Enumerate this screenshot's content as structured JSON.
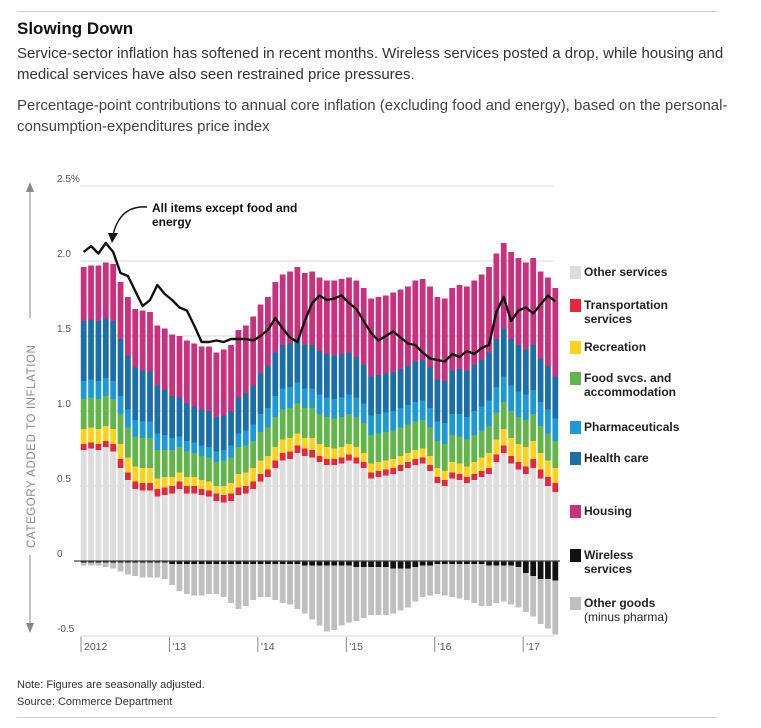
{
  "title": "Slowing Down",
  "subtitle": "Service-sector inflation has softened in recent months. Wireless services posted a drop, while housing and medical services have also seen restrained price pressures.",
  "description": "Percentage-point contributions to annual core inflation (excluding food and energy), based on the personal-consumption-expenditures price index",
  "note": "Note: Figures are seasonally adjusted.",
  "source": "Source: Commerce Department",
  "chart_data": {
    "type": "bar",
    "stacked": true,
    "ylabel": "CATEGORY ADDED TO INFLATION",
    "ylim": [
      -0.5,
      2.5
    ],
    "yticks": [
      {
        "value": 2.5,
        "label": "2.5%"
      },
      {
        "value": 2.0,
        "label": "2.0"
      },
      {
        "value": 1.5,
        "label": "1.5"
      },
      {
        "value": 1.0,
        "label": "1.0"
      },
      {
        "value": 0.5,
        "label": "0.5"
      },
      {
        "value": 0,
        "label": "0"
      },
      {
        "value": -0.5,
        "label": "-0.5"
      }
    ],
    "xticks": [
      {
        "index": 0,
        "label": "2012"
      },
      {
        "index": 12,
        "label": "'13"
      },
      {
        "index": 24,
        "label": "'14"
      },
      {
        "index": 36,
        "label": "'15"
      },
      {
        "index": 48,
        "label": "'16"
      },
      {
        "index": 60,
        "label": "'17"
      }
    ],
    "months": 65,
    "legend_position": "right",
    "annotation": "All items except food and energy",
    "series": [
      {
        "name": "Other services",
        "color": "#dddddd",
        "values": [
          0.74,
          0.75,
          0.74,
          0.76,
          0.73,
          0.62,
          0.54,
          0.48,
          0.47,
          0.47,
          0.43,
          0.44,
          0.45,
          0.48,
          0.45,
          0.45,
          0.44,
          0.43,
          0.4,
          0.39,
          0.4,
          0.44,
          0.45,
          0.48,
          0.53,
          0.56,
          0.62,
          0.67,
          0.68,
          0.72,
          0.7,
          0.69,
          0.66,
          0.64,
          0.64,
          0.65,
          0.67,
          0.65,
          0.62,
          0.55,
          0.56,
          0.57,
          0.58,
          0.6,
          0.62,
          0.64,
          0.65,
          0.6,
          0.52,
          0.5,
          0.55,
          0.54,
          0.52,
          0.54,
          0.56,
          0.58,
          0.66,
          0.72,
          0.65,
          0.61,
          0.58,
          0.62,
          0.55,
          0.5,
          0.46
        ]
      },
      {
        "name": "Transportation services",
        "color": "#e8253d",
        "values": [
          0.04,
          0.04,
          0.04,
          0.04,
          0.05,
          0.06,
          0.05,
          0.05,
          0.05,
          0.05,
          0.05,
          0.05,
          0.05,
          0.05,
          0.05,
          0.05,
          0.04,
          0.04,
          0.05,
          0.05,
          0.05,
          0.05,
          0.05,
          0.05,
          0.05,
          0.05,
          0.05,
          0.05,
          0.05,
          0.05,
          0.05,
          0.05,
          0.04,
          0.04,
          0.04,
          0.04,
          0.04,
          0.04,
          0.04,
          0.04,
          0.04,
          0.04,
          0.04,
          0.04,
          0.04,
          0.04,
          0.04,
          0.04,
          0.04,
          0.04,
          0.04,
          0.04,
          0.04,
          0.04,
          0.04,
          0.04,
          0.05,
          0.05,
          0.05,
          0.05,
          0.05,
          0.06,
          0.06,
          0.06,
          0.06
        ]
      },
      {
        "name": "Recreation",
        "color": "#fcd21e",
        "values": [
          0.1,
          0.1,
          0.1,
          0.1,
          0.1,
          0.1,
          0.1,
          0.1,
          0.1,
          0.1,
          0.07,
          0.07,
          0.06,
          0.06,
          0.06,
          0.06,
          0.06,
          0.06,
          0.05,
          0.06,
          0.07,
          0.09,
          0.09,
          0.09,
          0.09,
          0.09,
          0.09,
          0.09,
          0.09,
          0.08,
          0.07,
          0.08,
          0.08,
          0.08,
          0.07,
          0.07,
          0.07,
          0.07,
          0.06,
          0.06,
          0.06,
          0.06,
          0.06,
          0.06,
          0.06,
          0.06,
          0.06,
          0.06,
          0.06,
          0.06,
          0.07,
          0.07,
          0.07,
          0.08,
          0.09,
          0.1,
          0.1,
          0.11,
          0.12,
          0.12,
          0.13,
          0.12,
          0.11,
          0.11,
          0.1
        ]
      },
      {
        "name": "Food svcs. and accommodation",
        "color": "#62b548",
        "values": [
          0.2,
          0.2,
          0.2,
          0.2,
          0.2,
          0.2,
          0.2,
          0.2,
          0.2,
          0.2,
          0.19,
          0.18,
          0.18,
          0.17,
          0.17,
          0.16,
          0.16,
          0.16,
          0.16,
          0.17,
          0.17,
          0.18,
          0.18,
          0.18,
          0.19,
          0.19,
          0.2,
          0.2,
          0.2,
          0.2,
          0.2,
          0.2,
          0.2,
          0.2,
          0.2,
          0.2,
          0.2,
          0.2,
          0.2,
          0.19,
          0.19,
          0.19,
          0.19,
          0.19,
          0.19,
          0.19,
          0.19,
          0.19,
          0.18,
          0.18,
          0.18,
          0.18,
          0.18,
          0.18,
          0.18,
          0.18,
          0.18,
          0.18,
          0.18,
          0.18,
          0.18,
          0.18,
          0.18,
          0.18,
          0.18
        ]
      },
      {
        "name": "Pharmaceuticals",
        "color": "#1d9ad6",
        "values": [
          0.12,
          0.12,
          0.12,
          0.12,
          0.12,
          0.12,
          0.12,
          0.11,
          0.11,
          0.11,
          0.11,
          0.1,
          0.08,
          0.07,
          0.07,
          0.07,
          0.07,
          0.07,
          0.07,
          0.07,
          0.08,
          0.09,
          0.1,
          0.11,
          0.12,
          0.13,
          0.14,
          0.14,
          0.14,
          0.14,
          0.13,
          0.13,
          0.13,
          0.13,
          0.13,
          0.13,
          0.13,
          0.13,
          0.13,
          0.13,
          0.13,
          0.13,
          0.13,
          0.13,
          0.13,
          0.13,
          0.13,
          0.13,
          0.13,
          0.14,
          0.14,
          0.15,
          0.15,
          0.16,
          0.16,
          0.17,
          0.17,
          0.17,
          0.17,
          0.17,
          0.17,
          0.16,
          0.16,
          0.16,
          0.15
        ]
      },
      {
        "name": "Health care",
        "color": "#1b6fa8",
        "values": [
          0.4,
          0.4,
          0.4,
          0.4,
          0.4,
          0.38,
          0.36,
          0.35,
          0.34,
          0.33,
          0.32,
          0.3,
          0.28,
          0.26,
          0.25,
          0.24,
          0.24,
          0.24,
          0.23,
          0.23,
          0.23,
          0.24,
          0.25,
          0.26,
          0.27,
          0.28,
          0.29,
          0.29,
          0.29,
          0.29,
          0.29,
          0.29,
          0.29,
          0.29,
          0.29,
          0.29,
          0.28,
          0.27,
          0.26,
          0.26,
          0.26,
          0.26,
          0.26,
          0.26,
          0.26,
          0.27,
          0.27,
          0.27,
          0.28,
          0.28,
          0.29,
          0.3,
          0.31,
          0.31,
          0.31,
          0.32,
          0.32,
          0.32,
          0.31,
          0.31,
          0.3,
          0.3,
          0.29,
          0.29,
          0.28
        ]
      },
      {
        "name": "Housing",
        "color": "#c7317e",
        "values": [
          0.36,
          0.36,
          0.37,
          0.37,
          0.38,
          0.38,
          0.39,
          0.39,
          0.4,
          0.4,
          0.4,
          0.41,
          0.41,
          0.41,
          0.42,
          0.42,
          0.42,
          0.43,
          0.43,
          0.44,
          0.44,
          0.45,
          0.45,
          0.46,
          0.46,
          0.46,
          0.47,
          0.47,
          0.48,
          0.48,
          0.48,
          0.49,
          0.49,
          0.49,
          0.5,
          0.5,
          0.5,
          0.51,
          0.51,
          0.52,
          0.52,
          0.52,
          0.53,
          0.53,
          0.53,
          0.54,
          0.54,
          0.54,
          0.55,
          0.55,
          0.55,
          0.56,
          0.56,
          0.56,
          0.57,
          0.57,
          0.57,
          0.57,
          0.58,
          0.58,
          0.58,
          0.58,
          0.58,
          0.59,
          0.59
        ]
      },
      {
        "name": "Wireless services",
        "color": "#111111",
        "values": [
          -0.01,
          -0.01,
          -0.01,
          -0.01,
          -0.01,
          -0.01,
          -0.01,
          -0.01,
          -0.01,
          -0.01,
          -0.01,
          -0.01,
          -0.02,
          -0.02,
          -0.02,
          -0.02,
          -0.02,
          -0.02,
          -0.02,
          -0.02,
          -0.02,
          -0.02,
          -0.02,
          -0.02,
          -0.02,
          -0.02,
          -0.02,
          -0.02,
          -0.02,
          -0.02,
          -0.03,
          -0.03,
          -0.03,
          -0.03,
          -0.03,
          -0.03,
          -0.03,
          -0.04,
          -0.04,
          -0.04,
          -0.04,
          -0.04,
          -0.05,
          -0.05,
          -0.05,
          -0.04,
          -0.03,
          -0.03,
          -0.02,
          -0.02,
          -0.02,
          -0.02,
          -0.02,
          -0.02,
          -0.02,
          -0.03,
          -0.03,
          -0.03,
          -0.03,
          -0.04,
          -0.08,
          -0.1,
          -0.12,
          -0.12,
          -0.13
        ]
      },
      {
        "name": "Other goods (minus pharma)",
        "color": "#bfbfbf",
        "values": [
          -0.02,
          -0.02,
          -0.02,
          -0.03,
          -0.04,
          -0.06,
          -0.08,
          -0.09,
          -0.1,
          -0.1,
          -0.1,
          -0.11,
          -0.14,
          -0.18,
          -0.2,
          -0.21,
          -0.21,
          -0.2,
          -0.2,
          -0.22,
          -0.26,
          -0.3,
          -0.28,
          -0.24,
          -0.22,
          -0.22,
          -0.24,
          -0.26,
          -0.27,
          -0.3,
          -0.32,
          -0.36,
          -0.4,
          -0.44,
          -0.43,
          -0.4,
          -0.38,
          -0.36,
          -0.34,
          -0.32,
          -0.32,
          -0.32,
          -0.3,
          -0.28,
          -0.26,
          -0.23,
          -0.21,
          -0.2,
          -0.2,
          -0.21,
          -0.22,
          -0.23,
          -0.24,
          -0.26,
          -0.28,
          -0.27,
          -0.25,
          -0.24,
          -0.26,
          -0.27,
          -0.26,
          -0.27,
          -0.3,
          -0.33,
          -0.36
        ]
      },
      {
        "name": "All items except food and energy",
        "type": "line",
        "color": "#111111",
        "values": [
          2.06,
          2.1,
          2.05,
          2.12,
          2.06,
          1.92,
          1.9,
          1.8,
          1.7,
          1.74,
          1.84,
          1.78,
          1.74,
          1.69,
          1.67,
          1.57,
          1.46,
          1.46,
          1.47,
          1.46,
          1.48,
          1.48,
          1.48,
          1.47,
          1.5,
          1.54,
          1.62,
          1.55,
          1.49,
          1.46,
          1.6,
          1.72,
          1.77,
          1.74,
          1.75,
          1.77,
          1.72,
          1.68,
          1.6,
          1.52,
          1.47,
          1.5,
          1.53,
          1.49,
          1.45,
          1.44,
          1.39,
          1.35,
          1.34,
          1.33,
          1.38,
          1.36,
          1.4,
          1.38,
          1.42,
          1.44,
          1.66,
          1.76,
          1.6,
          1.67,
          1.69,
          1.65,
          1.71,
          1.77,
          1.73
        ]
      }
    ]
  }
}
